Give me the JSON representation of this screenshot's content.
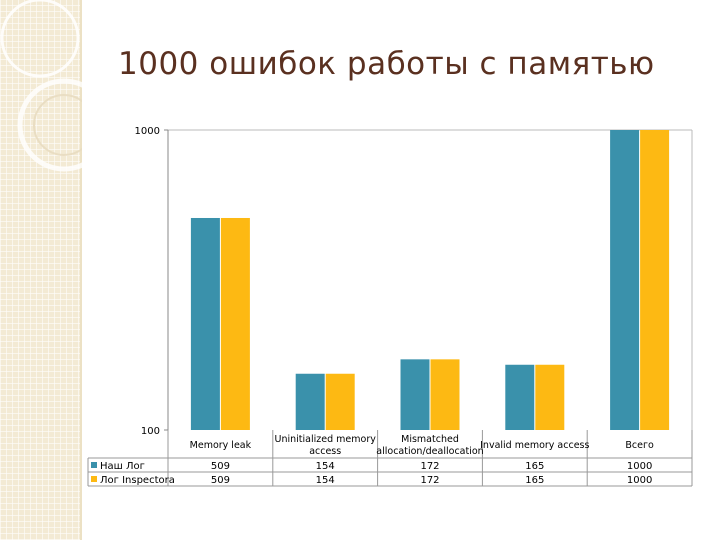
{
  "slide": {
    "title": "1000 ошибок работы с памятью"
  },
  "colors": {
    "series_1": "#3a91ab",
    "series_2": "#fdb913",
    "title": "#5a3020",
    "strip": "#f3ead4"
  },
  "chart_data": {
    "type": "bar",
    "title": "1000 ошибок работы с памятью",
    "xlabel": "",
    "ylabel": "",
    "yscale": "log",
    "ylim": [
      100,
      1000
    ],
    "yticks": [
      "100",
      "1000"
    ],
    "grid": false,
    "legend_position": "data-table-left",
    "categories": [
      [
        "Memory leak"
      ],
      [
        "Uninitialized memory",
        "access"
      ],
      [
        "Mismatched",
        "allocation/deallocation"
      ],
      [
        "Invalid memory access"
      ],
      [
        "Всего"
      ]
    ],
    "series": [
      {
        "name": "Наш Лог",
        "values": [
          509,
          154,
          172,
          165,
          1000
        ],
        "labels": [
          "509",
          "154",
          "172",
          "165",
          "1000"
        ]
      },
      {
        "name": "Лог Inspectora",
        "values": [
          509,
          154,
          172,
          165,
          1000
        ],
        "labels": [
          "509",
          "154",
          "172",
          "165",
          "1000"
        ]
      }
    ]
  }
}
